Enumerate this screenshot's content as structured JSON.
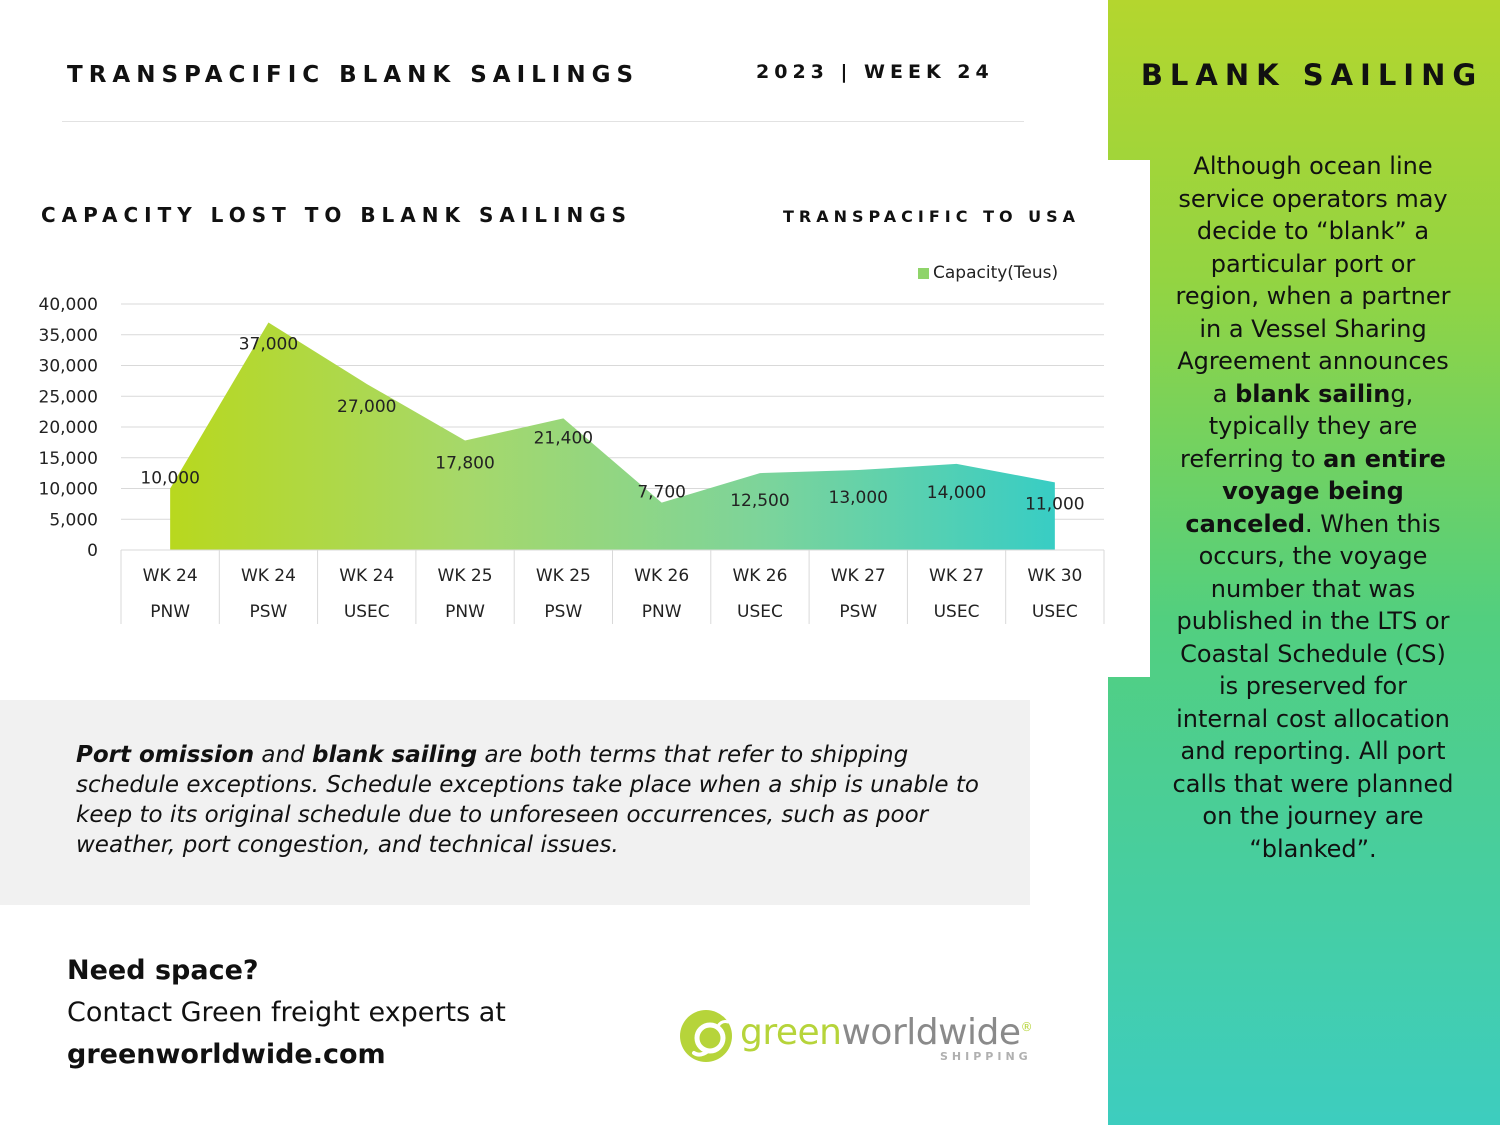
{
  "header": {
    "title": "TRANSPACIFIC BLANK SAILINGS",
    "week": "2023 | WEEK 24"
  },
  "chart_data": {
    "type": "area",
    "title": "CAPACITY LOST TO BLANK SAILINGS",
    "subtitle": "TRANSPACIFIC TO USA",
    "categories": [
      [
        "WK 24",
        "PNW"
      ],
      [
        "WK 24",
        "PSW"
      ],
      [
        "WK 24",
        "USEC"
      ],
      [
        "WK 25",
        "PNW"
      ],
      [
        "WK 25",
        "PSW"
      ],
      [
        "WK 26",
        "PNW"
      ],
      [
        "WK 26",
        "USEC"
      ],
      [
        "WK 27",
        "PSW"
      ],
      [
        "WK 27",
        "USEC"
      ],
      [
        "WK 30",
        "USEC"
      ]
    ],
    "series": [
      {
        "name": "Capacity(Teus)",
        "values": [
          10000,
          37000,
          27000,
          17800,
          21400,
          7700,
          12500,
          13000,
          14000,
          11000
        ]
      }
    ],
    "data_labels": [
      "10,000",
      "37,000",
      "27,000",
      "17,800",
      "21,400",
      "7,700",
      "12,500",
      "13,000",
      "14,000",
      "11,000"
    ],
    "y_ticks": [
      "0",
      "5,000",
      "10,000",
      "15,000",
      "20,000",
      "25,000",
      "30,000",
      "35,000",
      "40,000"
    ],
    "ylim": [
      0,
      40000
    ],
    "grid": true,
    "legend_position": "top-right",
    "gradient_colors": [
      "#b8d81e",
      "#a6d86a",
      "#7dd49a",
      "#38cdc4"
    ]
  },
  "info": {
    "term1": "Port omission",
    "and": " and ",
    "term2": "blank sailing",
    "body": " are both terms that refer to shipping schedule exceptions. Schedule exceptions take place when a ship is unable to keep to its original schedule due to unforeseen occurrences, such as poor weather, port congestion, and technical issues."
  },
  "cta": {
    "heading": "Need space?",
    "body": "Contact Green freight experts at",
    "url": "greenworldwide.com"
  },
  "logo": {
    "green": "green",
    "world": "worldwide",
    "registered": "®",
    "sub": "SHIPPING",
    "icon": "green-g-icon"
  },
  "sidebar": {
    "title": "BLANK SAILING",
    "p1": "Although ocean line service operators may decide to “blank” a particular port or region, when a partner in a Vessel Sharing Agreement announces a ",
    "b1": "blank sailin",
    "p2": "g, typically they are referring to ",
    "b2": "an entire voyage being canceled",
    "p3": ". When this occurs, the voyage number that was published in the LTS or Coastal Schedule (CS) is preserved for internal cost allocation and reporting. All port calls that were planned on the journey are “blanked”."
  }
}
